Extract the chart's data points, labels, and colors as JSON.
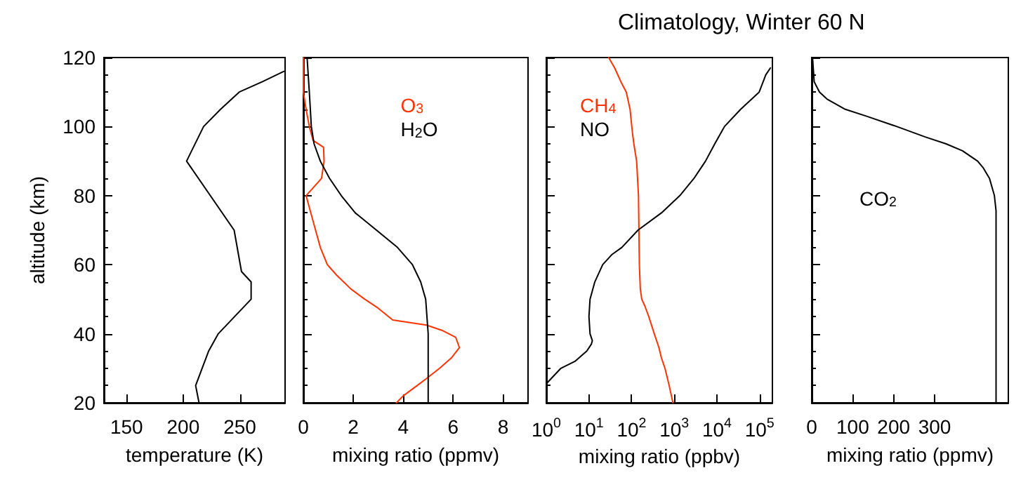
{
  "chart_data": [
    {
      "type": "line",
      "xlabel": "temperature (K)",
      "ylabel": "altitude (km)",
      "xlim": [
        130,
        290
      ],
      "xticks": [
        150,
        200,
        250
      ],
      "ylim": [
        20,
        120
      ],
      "yticks": [
        20,
        40,
        60,
        80,
        100,
        120
      ],
      "grid": false,
      "legend": false,
      "series": [
        {
          "color": "#000000",
          "x": [
            214,
            211,
            222.5,
            231,
            260,
            260,
            251.5,
            245,
            203,
            218,
            233,
            249.5,
            270,
            289
          ],
          "values": [
            20,
            25,
            35,
            40,
            50,
            55,
            58,
            70,
            90,
            100,
            105,
            110,
            113,
            116
          ]
        }
      ]
    },
    {
      "type": "line",
      "xlabel": "mixing ratio (ppmv)",
      "xlim": [
        0,
        9
      ],
      "xticks": [
        0,
        2,
        4,
        6,
        8
      ],
      "ylim": [
        20,
        120
      ],
      "yticks": [
        20,
        40,
        60,
        80,
        100,
        120
      ],
      "tick_labels": "x",
      "grid": false,
      "legend": "top",
      "series": [
        {
          "name": "O$_{3}$",
          "color": "#ff3300",
          "x": [
            3.73,
            4.0,
            4.56,
            4.93,
            5.46,
            5.93,
            6.25,
            6.1,
            5.55,
            4.93,
            3.58,
            2.98,
            2.46,
            1.9,
            1.33,
            0.96,
            0.68,
            0.49,
            0.3,
            0.11,
            0.73,
            0.83,
            0.81,
            0.39,
            0.24,
            0.11,
            0,
            0
          ],
          "values": [
            20,
            22,
            25,
            27,
            30,
            33,
            36,
            39,
            41,
            42.5,
            44,
            47.5,
            50,
            53,
            57,
            60,
            65,
            70,
            75,
            80,
            85,
            90,
            94,
            96,
            100,
            105,
            110,
            120
          ]
        },
        {
          "name": "H$_{2}$O",
          "color": "#000000",
          "x": [
            5.0,
            5.0,
            4.9,
            4.7,
            4.37,
            3.77,
            2.93,
            2.08,
            1.52,
            1.05,
            0.68,
            0.43,
            0.32,
            0.24,
            0.15
          ],
          "values": [
            20,
            40,
            50,
            55,
            60,
            65,
            70,
            75,
            80,
            85,
            90,
            95,
            100,
            110,
            120
          ]
        }
      ]
    },
    {
      "type": "line",
      "title": "Climatology, Winter 60 N",
      "xlabel": "mixing ratio (ppbv)",
      "log": "x",
      "xlim": [
        1,
        200000
      ],
      "xticks": [
        {
          "value": 1,
          "label": "10$^{0}$"
        },
        {
          "value": 10,
          "label": "10$^{1}$"
        },
        {
          "value": 100,
          "label": "10$^{2}$"
        },
        {
          "value": 1000,
          "label": "10$^{3}$"
        },
        {
          "value": 10000,
          "label": "10$^{4}$"
        },
        {
          "value": 100000,
          "label": "10$^{5}$"
        }
      ],
      "ylim": [
        20,
        120
      ],
      "yticks": [
        20,
        40,
        60,
        80,
        100,
        120
      ],
      "tick_labels": "x",
      "grid": false,
      "legend": "top left",
      "series": [
        {
          "name": "CH$_{4}$",
          "color": "#ff3300",
          "x": [
            930,
            760,
            605,
            500,
            437,
            340,
            252,
            205,
            173,
            160,
            152,
            145,
            131,
            113,
            105,
            92,
            75,
            56,
            40,
            29
          ],
          "values": [
            20,
            25,
            30,
            33,
            36,
            40,
            45,
            48,
            50,
            53,
            60,
            80,
            90,
            95,
            98,
            105,
            110,
            113,
            117,
            120
          ]
        },
        {
          "name": "NO",
          "color": "#000000",
          "x": [
            1.05,
            2.2,
            4.7,
            8.9,
            11.4,
            12,
            10.6,
            10,
            10.6,
            13.7,
            21,
            35,
            59,
            141,
            500,
            1350,
            2900,
            5400,
            8900,
            15000,
            36000,
            98000,
            140000,
            180000
          ],
          "values": [
            25.8,
            30,
            32,
            35,
            37,
            38,
            40,
            45,
            50,
            55,
            60,
            63,
            65,
            70,
            75,
            80,
            85,
            90,
            95,
            100,
            105,
            110,
            115,
            117
          ]
        }
      ]
    },
    {
      "type": "line",
      "xlabel": "mixing ratio (ppmv)",
      "xlim": [
        0,
        480
      ],
      "xticks": [
        0,
        100,
        200,
        300
      ],
      "ylim": [
        20,
        120
      ],
      "yticks": [
        20,
        40,
        60,
        80,
        100,
        120
      ],
      "tick_labels": "x",
      "grid": false,
      "legend": "left",
      "series": [
        {
          "name": "CO$_{2}$",
          "color": "#000000",
          "x": [
            450,
            450,
            446,
            434,
            419,
            405,
            368,
            328,
            277,
            208,
            134,
            82,
            37,
            19,
            6,
            2
          ],
          "values": [
            20,
            75.6,
            80,
            85,
            88,
            90,
            93,
            95,
            97,
            100,
            103,
            105,
            108,
            110,
            113,
            120
          ]
        }
      ]
    }
  ]
}
